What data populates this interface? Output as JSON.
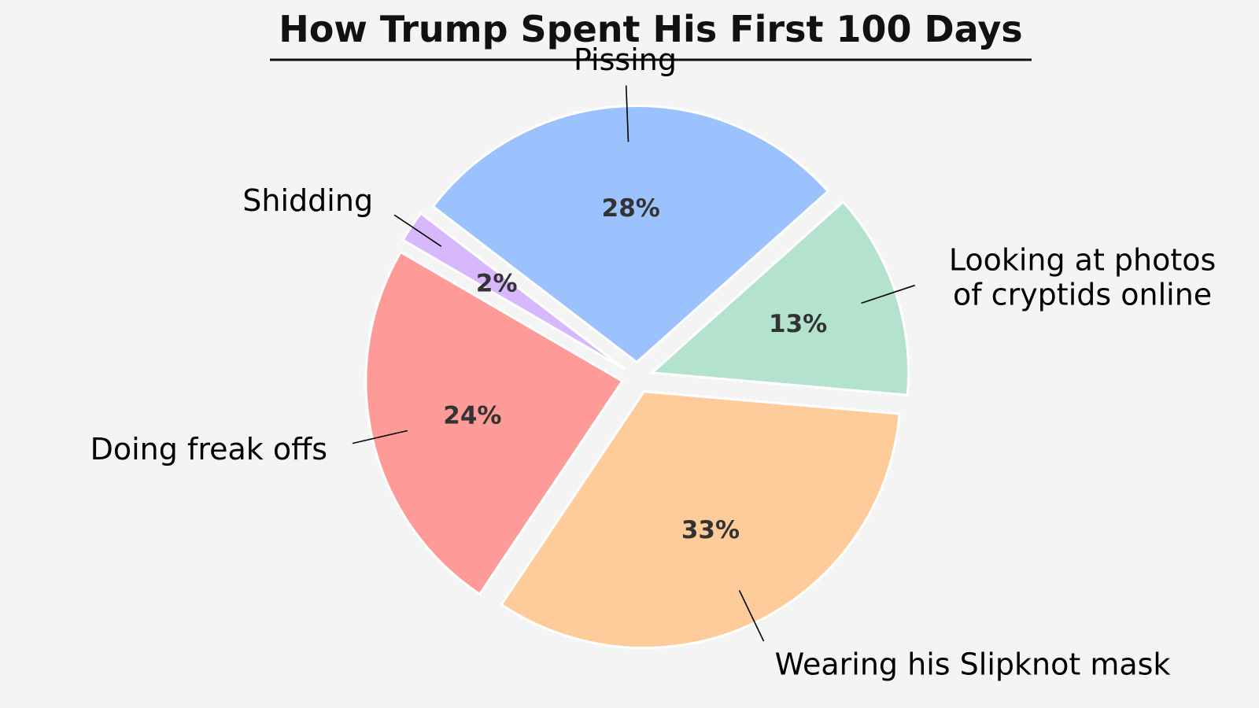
{
  "chart_data": {
    "type": "pie",
    "title": "How Trump Spent His First 100 Days",
    "slices": [
      {
        "label": "Looking at photos\nof cryptids online",
        "value": 13,
        "pct_label": "13%",
        "color": "#b3e3cf",
        "explode": true
      },
      {
        "label": "Pissing",
        "value": 28,
        "pct_label": "28%",
        "color": "#9bc2fc",
        "explode": true
      },
      {
        "label": "Shidding",
        "value": 2,
        "pct_label": "2%",
        "color": "#d8b8fc",
        "explode": true
      },
      {
        "label": "Doing freak offs",
        "value": 24,
        "pct_label": "24%",
        "color": "#fe9b98",
        "explode": true
      },
      {
        "label": "Wearing his Slipknot mask",
        "value": 33,
        "pct_label": "33%",
        "color": "#fecc9a",
        "explode": true
      }
    ],
    "start_angle_deg": -5,
    "direction": "counterclockwise",
    "legend": "none"
  }
}
